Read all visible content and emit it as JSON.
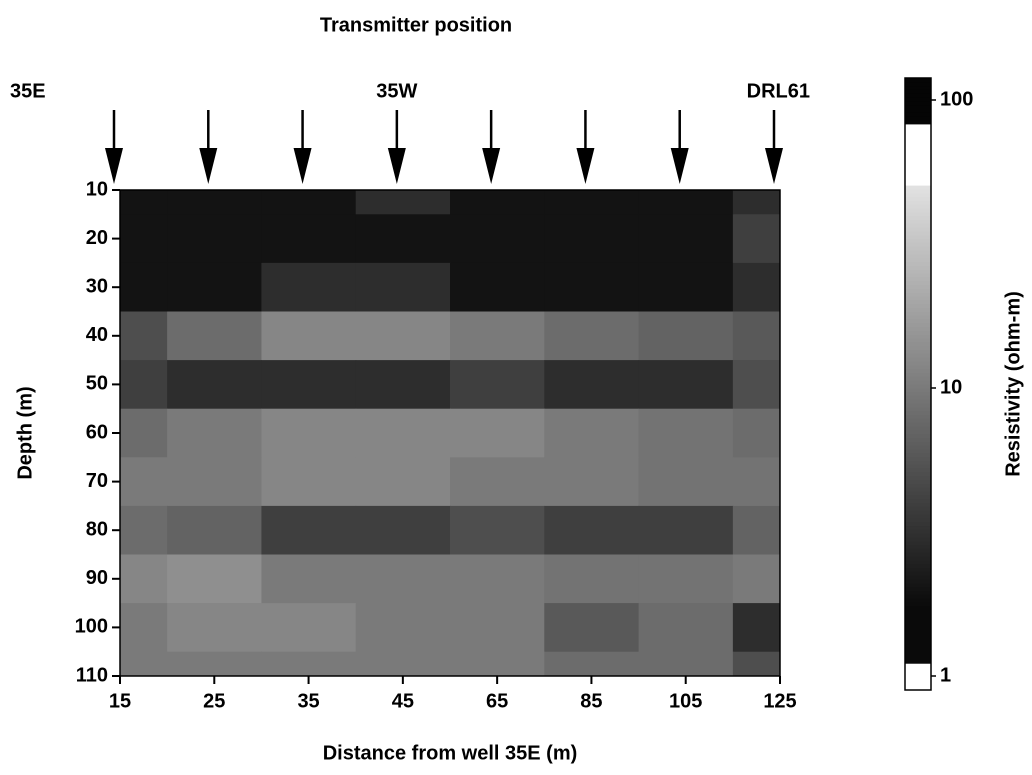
{
  "chart_data": {
    "type": "heatmap",
    "title": "Transmitter position",
    "x_label": "Distance from well 35E (m)",
    "y_label": "Depth (m)",
    "colorbar_label": "Resistivity (ohm-m)",
    "categories": [
      "15",
      "25",
      "35",
      "45",
      "65",
      "85",
      "105",
      "125"
    ],
    "transmitter_labels": [
      "35E",
      null,
      null,
      "35W",
      null,
      null,
      null,
      "DRL61"
    ],
    "y": [
      10,
      20,
      30,
      40,
      50,
      60,
      70,
      80,
      90,
      100,
      110
    ],
    "ylim": [
      10,
      110
    ],
    "yticks": [
      10,
      20,
      30,
      40,
      50,
      60,
      70,
      80,
      90,
      100,
      110
    ],
    "z": [
      [
        2,
        2,
        2,
        3,
        2,
        2,
        2,
        3
      ],
      [
        2,
        2,
        2,
        2,
        2,
        2,
        2,
        4
      ],
      [
        2,
        2,
        3,
        3,
        2,
        2,
        2,
        3
      ],
      [
        5,
        8,
        12,
        12,
        10,
        8,
        7,
        6
      ],
      [
        4,
        3,
        3,
        3,
        4,
        3,
        3,
        5
      ],
      [
        8,
        10,
        12,
        12,
        12,
        10,
        9,
        8
      ],
      [
        10,
        10,
        12,
        12,
        10,
        10,
        9,
        9
      ],
      [
        8,
        7,
        4,
        4,
        5,
        4,
        4,
        7
      ],
      [
        12,
        14,
        10,
        10,
        10,
        9,
        9,
        10
      ],
      [
        10,
        12,
        12,
        10,
        10,
        6,
        8,
        3
      ],
      [
        10,
        10,
        10,
        10,
        10,
        8,
        8,
        5
      ]
    ],
    "clim": [
      1,
      100
    ],
    "cticks": [
      1,
      10,
      100
    ],
    "color_log": true
  }
}
